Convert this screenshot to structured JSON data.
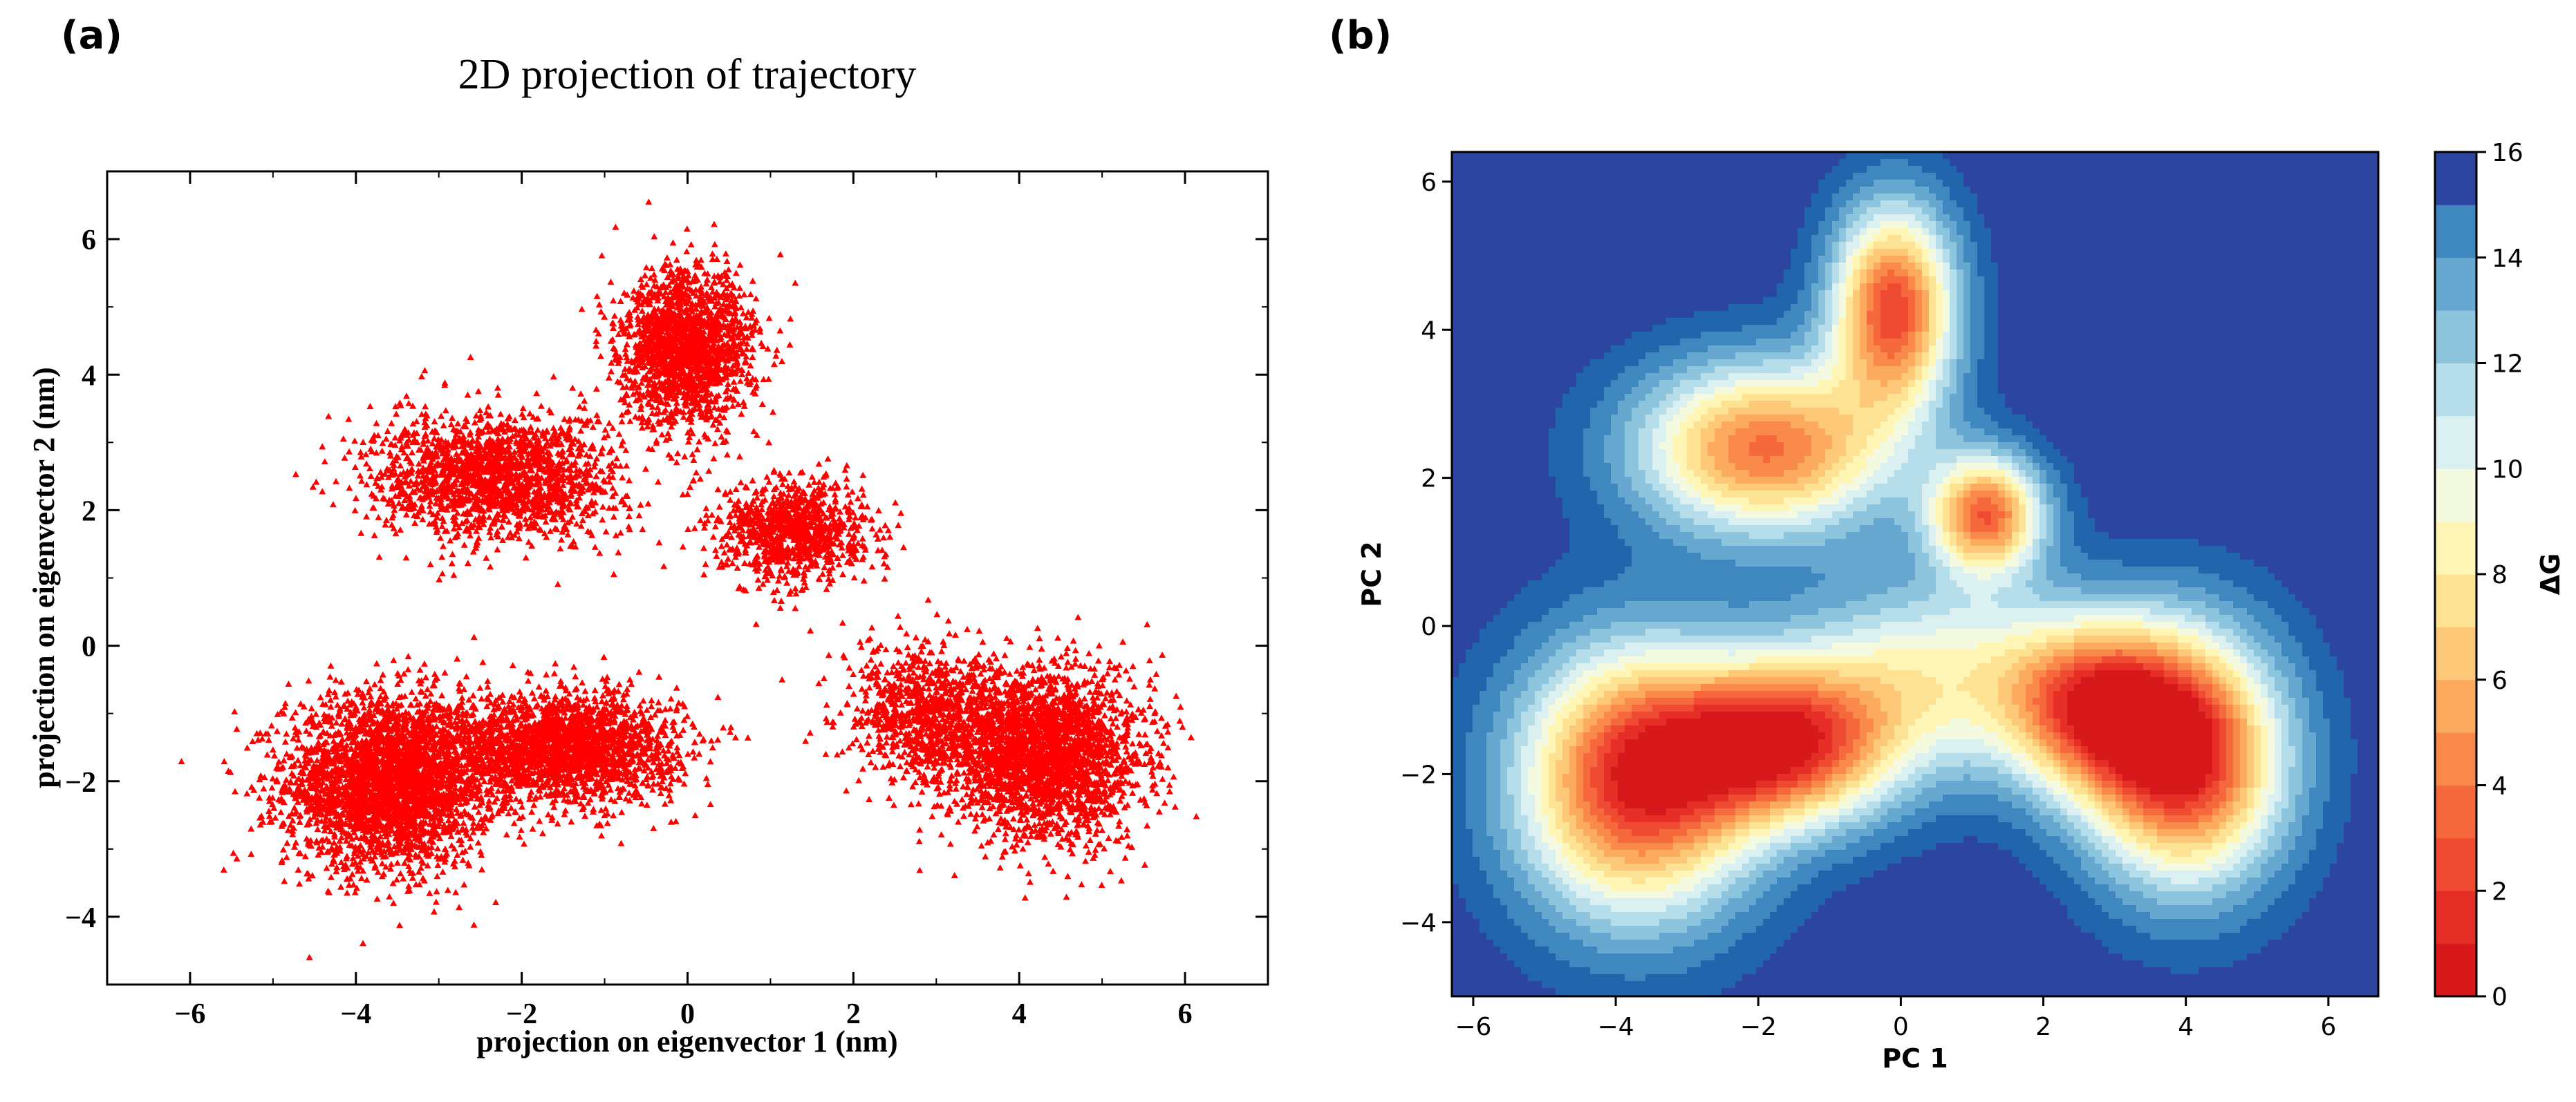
{
  "figure": {
    "panel_a_label": "(a)",
    "panel_b_label": "(b)"
  },
  "chart_data": [
    {
      "type": "scatter",
      "title": "2D projection of trajectory",
      "xlabel": "projection on eigenvector 1 (nm)",
      "ylabel": "projection on eigenvector 2 (nm)",
      "xlim": [
        -7,
        7
      ],
      "ylim": [
        -5,
        7
      ],
      "xticks": [
        -6,
        -4,
        -2,
        0,
        2,
        4,
        6
      ],
      "xtick_labels": [
        "−6",
        "−4",
        "−2",
        "0",
        "2",
        "4",
        "6"
      ],
      "yticks": [
        -4,
        -2,
        0,
        2,
        4,
        6
      ],
      "ytick_labels": [
        "−4",
        "−2",
        "0",
        "2",
        "4",
        "6"
      ],
      "marker_color": "#ff0000",
      "marker": "triangle",
      "clusters": [
        {
          "cx": -3.6,
          "cy": -2.0,
          "sx": 1.0,
          "sy": 1.0,
          "n": 3200
        },
        {
          "cx": -1.5,
          "cy": -1.5,
          "sx": 1.1,
          "sy": 0.65,
          "n": 2200
        },
        {
          "cx": -2.3,
          "cy": 2.5,
          "sx": 1.2,
          "sy": 0.75,
          "n": 1800
        },
        {
          "cx": 0.0,
          "cy": 4.4,
          "sx": 0.65,
          "sy": 0.9,
          "n": 1800
        },
        {
          "cx": 1.3,
          "cy": 1.7,
          "sx": 0.7,
          "sy": 0.6,
          "n": 1000
        },
        {
          "cx": 4.3,
          "cy": -1.6,
          "sx": 0.95,
          "sy": 1.0,
          "n": 2600
        },
        {
          "cx": 2.9,
          "cy": -1.0,
          "sx": 0.8,
          "sy": 0.8,
          "n": 900
        }
      ]
    },
    {
      "type": "heatmap",
      "xlabel": "PC 1",
      "ylabel": "PC 2",
      "xlim": [
        -6.3,
        6.7
      ],
      "ylim": [
        -5.0,
        6.4
      ],
      "xticks": [
        -6,
        -4,
        -2,
        0,
        2,
        4,
        6
      ],
      "xtick_labels": [
        "−6",
        "−4",
        "−2",
        "0",
        "2",
        "4",
        "6"
      ],
      "yticks": [
        -4,
        -2,
        0,
        2,
        4,
        6
      ],
      "ytick_labels": [
        "−4",
        "−2",
        "0",
        "2",
        "4",
        "6"
      ],
      "colorbar_label": "ΔG",
      "colorbar_ticks": [
        0,
        2,
        4,
        6,
        8,
        10,
        12,
        14,
        16
      ],
      "colorbar_tick_labels": [
        "0",
        "2",
        "4",
        "6",
        "8",
        "10",
        "12",
        "14",
        "16"
      ],
      "levels": [
        0,
        1,
        2,
        3,
        4,
        5,
        6,
        7,
        8,
        9,
        10,
        11,
        12,
        13,
        14,
        15,
        16
      ],
      "level_colors": [
        "#d7191c",
        "#e52f26",
        "#ef4a32",
        "#f6693d",
        "#fa8a4b",
        "#fcab5e",
        "#fdc877",
        "#fee293",
        "#fff5b4",
        "#f3fae0",
        "#dbf0f1",
        "#b6deea",
        "#8ec5de",
        "#66a8cf",
        "#3f88bf",
        "#2166ac"
      ],
      "max_color": "#2b45a0",
      "basins": [
        {
          "cx": -3.7,
          "cy": -2.1,
          "sx": 1.15,
          "sy": 1.25,
          "depth": 15.2
        },
        {
          "cx": -1.6,
          "cy": -1.6,
          "sx": 1.1,
          "sy": 0.75,
          "depth": 13.8
        },
        {
          "cx": -1.9,
          "cy": 2.4,
          "sx": 1.25,
          "sy": 0.8,
          "depth": 12.8
        },
        {
          "cx": -0.1,
          "cy": 4.3,
          "sx": 0.6,
          "sy": 0.95,
          "depth": 14.2
        },
        {
          "cx": 1.2,
          "cy": 1.5,
          "sx": 0.55,
          "sy": 0.55,
          "depth": 13.0
        },
        {
          "cx": 4.0,
          "cy": -1.8,
          "sx": 0.95,
          "sy": 1.15,
          "depth": 15.6
        },
        {
          "cx": 2.7,
          "cy": -1.1,
          "sx": 0.9,
          "sy": 0.8,
          "depth": 11.5
        },
        {
          "cx": 0.5,
          "cy": -0.6,
          "sx": 1.4,
          "sy": 0.9,
          "depth": 7.0
        }
      ]
    }
  ]
}
